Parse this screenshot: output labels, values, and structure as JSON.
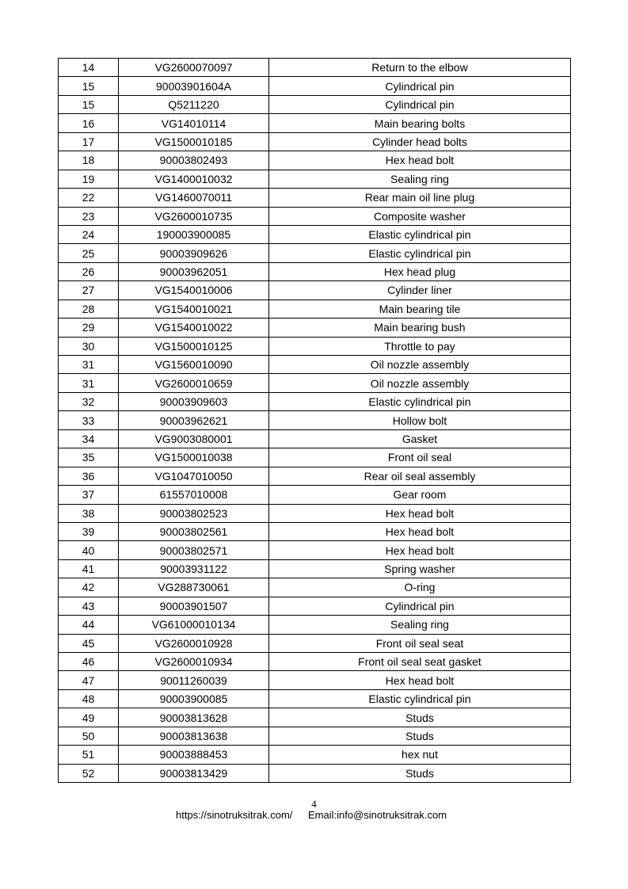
{
  "rows": [
    [
      "14",
      "VG2600070097",
      "Return to the elbow"
    ],
    [
      "15",
      "90003901604A",
      "Cylindrical pin"
    ],
    [
      "15",
      "Q5211220",
      "Cylindrical pin"
    ],
    [
      "16",
      "VG14010114",
      "Main bearing bolts"
    ],
    [
      "17",
      "VG1500010185",
      "Cylinder head bolts"
    ],
    [
      "18",
      "90003802493",
      "Hex head bolt"
    ],
    [
      "19",
      "VG1400010032",
      "Sealing ring"
    ],
    [
      "22",
      "VG1460070011",
      "Rear main oil line plug"
    ],
    [
      "23",
      "VG2600010735",
      "Composite washer"
    ],
    [
      "24",
      "190003900085",
      "Elastic cylindrical pin"
    ],
    [
      "25",
      "90003909626",
      "Elastic cylindrical pin"
    ],
    [
      "26",
      "90003962051",
      "Hex head plug"
    ],
    [
      "27",
      "VG1540010006",
      "Cylinder liner"
    ],
    [
      "28",
      "VG1540010021",
      "Main bearing tile"
    ],
    [
      "29",
      "VG1540010022",
      "Main bearing bush"
    ],
    [
      "30",
      "VG1500010125",
      "Throttle to pay"
    ],
    [
      "31",
      "VG1560010090",
      "Oil nozzle assembly"
    ],
    [
      "31",
      "VG2600010659",
      "Oil nozzle assembly"
    ],
    [
      "32",
      "90003909603",
      "Elastic cylindrical pin"
    ],
    [
      "33",
      "90003962621",
      "Hollow bolt"
    ],
    [
      "34",
      "VG9003080001",
      "Gasket"
    ],
    [
      "35",
      "VG1500010038",
      "Front oil seal"
    ],
    [
      "36",
      "VG1047010050",
      "Rear oil seal assembly"
    ],
    [
      "37",
      "61557010008",
      "Gear room"
    ],
    [
      "38",
      "90003802523",
      "Hex head bolt"
    ],
    [
      "39",
      "90003802561",
      "Hex head bolt"
    ],
    [
      "40",
      "90003802571",
      "Hex head bolt"
    ],
    [
      "41",
      "90003931122",
      "Spring washer"
    ],
    [
      "42",
      "VG288730061",
      "O-ring"
    ],
    [
      "43",
      "90003901507",
      "Cylindrical pin"
    ],
    [
      "44",
      "VG61000010134",
      "Sealing ring"
    ],
    [
      "45",
      "VG2600010928",
      "Front oil seal seat"
    ],
    [
      "46",
      "VG2600010934",
      "Front oil seal seat gasket"
    ],
    [
      "47",
      "90011260039",
      "Hex head bolt"
    ],
    [
      "48",
      "90003900085",
      "Elastic cylindrical pin"
    ],
    [
      "49",
      "90003813628",
      "Studs"
    ],
    [
      "50",
      "90003813638",
      "Studs"
    ],
    [
      "51",
      "90003888453",
      "hex nut"
    ],
    [
      "52",
      "90003813429",
      "Studs"
    ]
  ],
  "footer": {
    "page_number": "4",
    "website": "https://sinotruksitrak.com/",
    "email": "Email:info@sinotruksitrak.com"
  }
}
